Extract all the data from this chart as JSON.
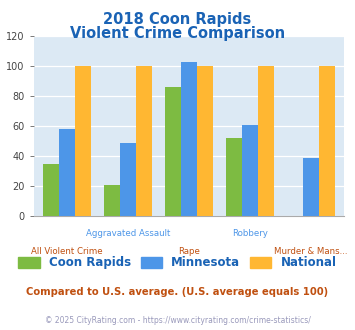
{
  "title_line1": "2018 Coon Rapids",
  "title_line2": "Violent Crime Comparison",
  "categories_top": [
    "",
    "Aggravated Assault",
    "",
    "Robbery",
    ""
  ],
  "categories_bot": [
    "All Violent Crime",
    "",
    "Rape",
    "",
    "Murder & Mans..."
  ],
  "coon_rapids": [
    35,
    21,
    86,
    52,
    0
  ],
  "minnesota": [
    58,
    49,
    103,
    61,
    39
  ],
  "national": [
    100,
    100,
    100,
    100,
    100
  ],
  "color_coon_rapids": "#7dbb42",
  "color_minnesota": "#4d96e8",
  "color_national": "#ffb732",
  "ylim": [
    0,
    120
  ],
  "yticks": [
    0,
    20,
    40,
    60,
    80,
    100,
    120
  ],
  "plot_bg": "#dce9f4",
  "title_color": "#1a63b5",
  "subtitle_color": "#c05010",
  "footer_color": "#9999bb",
  "legend_label_color": "#1a63b5",
  "xlabel_top_color": "#4d96e8",
  "xlabel_bot_color": "#c05010"
}
